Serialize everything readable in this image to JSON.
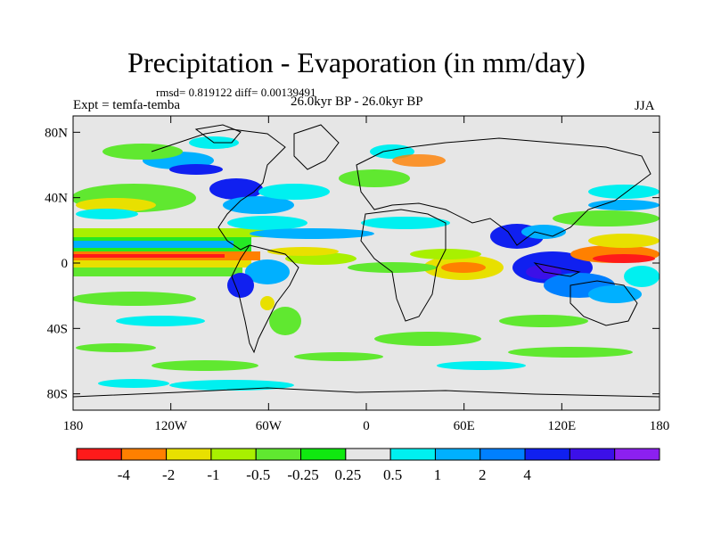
{
  "title": "Precipitation - Evaporation (in mm/day)",
  "stats": "rmsd= 0.819122 diff= 0.00139491",
  "experiment": "Expt = temfa-temba",
  "period": "26.0kyr BP - 26.0kyr BP",
  "season": "JJA",
  "axes": {
    "lat_ticks": [
      {
        "value": 80,
        "label": "80N"
      },
      {
        "value": 40,
        "label": "40N"
      },
      {
        "value": 0,
        "label": "0"
      },
      {
        "value": -40,
        "label": "40S"
      },
      {
        "value": -80,
        "label": "80S"
      }
    ],
    "lon_ticks": [
      {
        "value": -180,
        "label": "180"
      },
      {
        "value": -120,
        "label": "120W"
      },
      {
        "value": -60,
        "label": "60W"
      },
      {
        "value": 0,
        "label": "0"
      },
      {
        "value": 60,
        "label": "60E"
      },
      {
        "value": 120,
        "label": "120E"
      },
      {
        "value": 180,
        "label": "180"
      }
    ]
  },
  "colorbar": {
    "colors": [
      "#ff1a1a",
      "#ff8000",
      "#e8e000",
      "#a8f000",
      "#60e830",
      "#10e810",
      "#e6e6e6",
      "#00f0f0",
      "#00b0ff",
      "#0080ff",
      "#1020f0",
      "#3c10e8",
      "#8c20f0"
    ],
    "labels": [
      "-4",
      "-2",
      "-1",
      "-0.5",
      "-0.25",
      "0.25",
      "0.5",
      "1",
      "2",
      "4"
    ]
  },
  "colors": {
    "ocean_background": "#e6e6e6",
    "coastline": "#000000"
  }
}
